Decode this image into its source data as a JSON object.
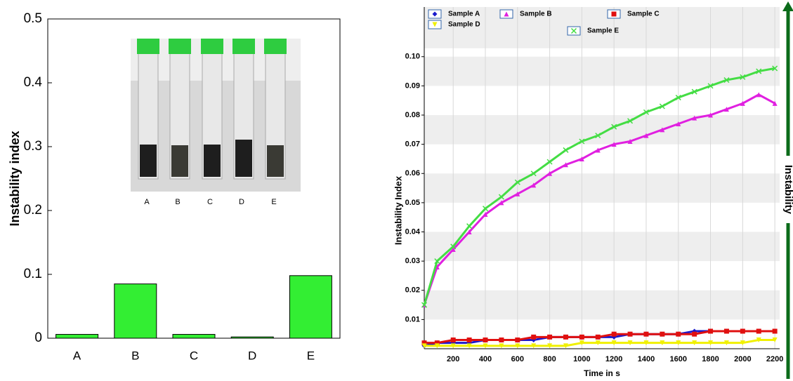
{
  "chart_data": [
    {
      "type": "bar",
      "ylabel": "Instability index",
      "categories": [
        "A",
        "B",
        "C",
        "D",
        "E"
      ],
      "values": [
        0.006,
        0.085,
        0.006,
        0.002,
        0.098
      ],
      "color": "#33ee33",
      "ylim": [
        0,
        0.5
      ],
      "yticks": [
        0,
        0.1,
        0.2,
        0.3,
        0.4,
        0.5
      ],
      "inset_labels": [
        "A",
        "B",
        "C",
        "D",
        "E"
      ]
    },
    {
      "type": "line",
      "xlabel": "Time in s",
      "ylabel": "Instability Index",
      "annotation": "Instability",
      "x": [
        20,
        100,
        200,
        300,
        400,
        500,
        600,
        700,
        800,
        900,
        1000,
        1100,
        1200,
        1300,
        1400,
        1500,
        1600,
        1700,
        1800,
        1900,
        2000,
        2100,
        2200
      ],
      "xlim": [
        20,
        2230
      ],
      "xticks": [
        200,
        400,
        600,
        800,
        1000,
        1200,
        1400,
        1600,
        1800,
        2000,
        2200
      ],
      "ylim": [
        0,
        0.117
      ],
      "yticks": [
        0.01,
        0.02,
        0.03,
        0.04,
        0.05,
        0.06,
        0.07,
        0.08,
        0.09,
        {
          "value": 0.1,
          "label": "0.10"
        }
      ],
      "series": [
        {
          "name": "Sample A",
          "color": "#1a1acc",
          "marker": "diamond",
          "values": [
            0.001,
            0.002,
            0.002,
            0.002,
            0.003,
            0.003,
            0.003,
            0.003,
            0.004,
            0.004,
            0.004,
            0.004,
            0.004,
            0.005,
            0.005,
            0.005,
            0.005,
            0.006,
            0.006,
            0.006,
            0.006,
            0.006,
            0.006
          ]
        },
        {
          "name": "Sample B",
          "color": "#e020e0",
          "marker": "triangle",
          "values": [
            0.015,
            0.028,
            0.034,
            0.04,
            0.046,
            0.05,
            0.053,
            0.056,
            0.06,
            0.063,
            0.065,
            0.068,
            0.07,
            0.071,
            0.073,
            0.075,
            0.077,
            0.079,
            0.08,
            0.082,
            0.084,
            0.087,
            0.084
          ]
        },
        {
          "name": "Sample C",
          "color": "#e01010",
          "marker": "square",
          "values": [
            0.002,
            0.002,
            0.003,
            0.003,
            0.003,
            0.003,
            0.003,
            0.004,
            0.004,
            0.004,
            0.004,
            0.004,
            0.005,
            0.005,
            0.005,
            0.005,
            0.005,
            0.005,
            0.006,
            0.006,
            0.006,
            0.006,
            0.006
          ]
        },
        {
          "name": "Sample D",
          "color": "#f0f000",
          "marker": "triangle-down",
          "values": [
            0.001,
            0.001,
            0.001,
            0.001,
            0.001,
            0.001,
            0.001,
            0.001,
            0.001,
            0.001,
            0.002,
            0.002,
            0.002,
            0.002,
            0.002,
            0.002,
            0.002,
            0.002,
            0.002,
            0.002,
            0.002,
            0.003,
            0.003
          ]
        },
        {
          "name": "Sample E",
          "color": "#44dd44",
          "marker": "x",
          "values": [
            0.015,
            0.03,
            0.035,
            0.042,
            0.048,
            0.052,
            0.057,
            0.06,
            0.064,
            0.068,
            0.071,
            0.073,
            0.076,
            0.078,
            0.081,
            0.083,
            0.086,
            0.088,
            0.09,
            0.092,
            0.093,
            0.095,
            0.096
          ]
        }
      ]
    }
  ]
}
